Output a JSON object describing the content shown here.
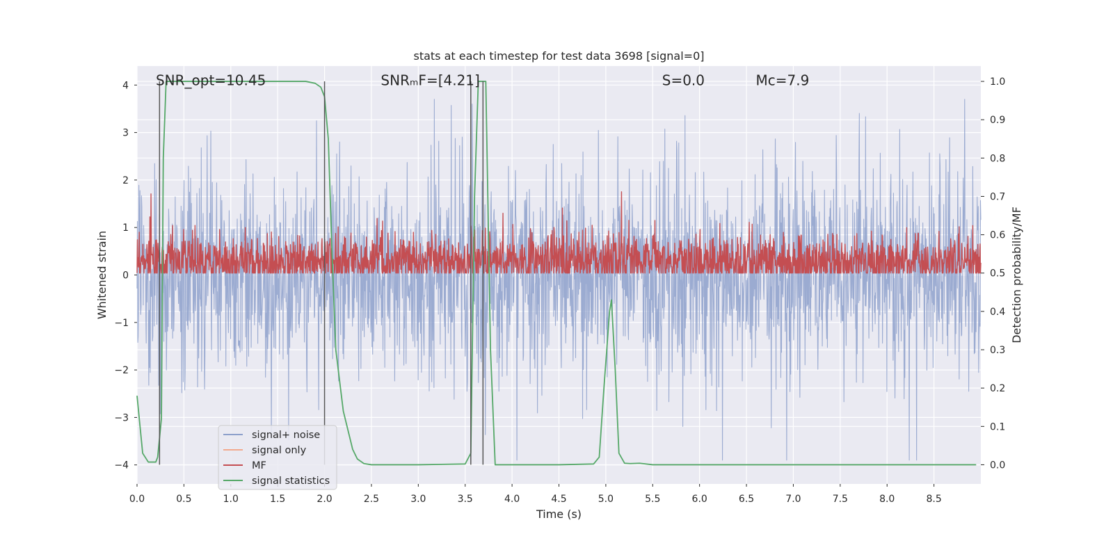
{
  "chart_data": {
    "type": "line",
    "title": "stats at each timestep for test data 3698 [signal=0]",
    "xlabel": "Time (s)",
    "ylabel_left": "Whitened strain",
    "ylabel_right": "Detection probability/MF",
    "xlim": [
      0.0,
      9.0
    ],
    "ylim_left": [
      -4.4,
      4.4
    ],
    "ylim_right": [
      -0.05,
      1.04
    ],
    "x_ticks": [
      0.0,
      0.5,
      1.0,
      1.5,
      2.0,
      2.5,
      3.0,
      3.5,
      4.0,
      4.5,
      5.0,
      5.5,
      6.0,
      6.5,
      7.0,
      7.5,
      8.0,
      8.5
    ],
    "x_tick_labels": [
      "0.0",
      "0.5",
      "1.0",
      "1.5",
      "2.0",
      "2.5",
      "3.0",
      "3.5",
      "4.0",
      "4.5",
      "5.0",
      "5.5",
      "6.0",
      "6.5",
      "7.0",
      "7.5",
      "8.0",
      "8.5"
    ],
    "y_left_ticks": [
      -4,
      -3,
      -2,
      -1,
      0,
      1,
      2,
      3,
      4
    ],
    "y_left_tick_labels": [
      "−4",
      "−3",
      "−2",
      "−1",
      "0",
      "1",
      "2",
      "3",
      "4"
    ],
    "y_right_ticks": [
      0.0,
      0.1,
      0.2,
      0.3,
      0.4,
      0.5,
      0.6,
      0.7,
      0.8,
      0.9,
      1.0
    ],
    "y_right_tick_labels": [
      "0.0",
      "0.1",
      "0.2",
      "0.3",
      "0.4",
      "0.5",
      "0.6",
      "0.7",
      "0.8",
      "0.9",
      "1.0"
    ],
    "grid": true,
    "legend_position": "lower-left",
    "annotations": [
      {
        "id": "snr-opt",
        "text": "SNR_opt=10.45",
        "x": 0.2
      },
      {
        "id": "snr-mf",
        "text": "SNRₘF=[4.21]",
        "x": 2.6
      },
      {
        "id": "s-value",
        "text": "S=0.0",
        "x": 5.6
      },
      {
        "id": "chirp-mass",
        "text": "Mᴄ=7.9",
        "x": 6.6
      }
    ],
    "annotation_y": 4.0,
    "vertical_markers": [
      0.24,
      2.0,
      3.56,
      3.69
    ],
    "series": [
      {
        "name": "signal+ noise",
        "axis": "left",
        "color": "#8da0cb",
        "style": "noise",
        "duration": 9.0,
        "points": 2300,
        "band_sigma": 1.05,
        "seed": 3698
      },
      {
        "name": "signal only",
        "axis": "left",
        "color": "#f2a98d",
        "style": "line",
        "x": [],
        "y": []
      },
      {
        "name": "MF",
        "axis": "right",
        "color": "#c44e52",
        "style": "noise",
        "duration": 9.0,
        "points": 2300,
        "center": 0.53,
        "band": 0.035,
        "seed": 421
      },
      {
        "name": "signal statistics",
        "axis": "right",
        "color": "#55a868",
        "style": "line",
        "x": [
          0.0,
          0.06,
          0.12,
          0.2,
          0.22,
          0.26,
          0.28,
          0.31,
          0.5,
          1.0,
          1.5,
          1.8,
          1.9,
          1.96,
          2.0,
          2.04,
          2.08,
          2.12,
          2.2,
          2.3,
          2.35,
          2.42,
          2.5,
          3.0,
          3.5,
          3.56,
          3.6,
          3.64,
          3.67,
          3.72,
          3.77,
          3.82,
          4.0,
          4.5,
          4.87,
          4.93,
          4.98,
          5.04,
          5.06,
          5.1,
          5.14,
          5.2,
          5.26,
          5.36,
          5.5,
          6.0,
          7.0,
          8.0,
          8.95
        ],
        "y": [
          0.18,
          0.03,
          0.007,
          0.007,
          0.02,
          0.12,
          0.8,
          1.0,
          1.0,
          1.0,
          1.0,
          1.0,
          0.995,
          0.985,
          0.96,
          0.85,
          0.55,
          0.3,
          0.14,
          0.04,
          0.015,
          0.003,
          0.0,
          0.0,
          0.002,
          0.03,
          0.7,
          1.0,
          1.0,
          1.0,
          0.3,
          0.0,
          0.0,
          0.0,
          0.002,
          0.02,
          0.2,
          0.4,
          0.43,
          0.25,
          0.03,
          0.004,
          0.003,
          0.004,
          0.0,
          0.0,
          0.0,
          0.0,
          0.0
        ]
      }
    ]
  }
}
